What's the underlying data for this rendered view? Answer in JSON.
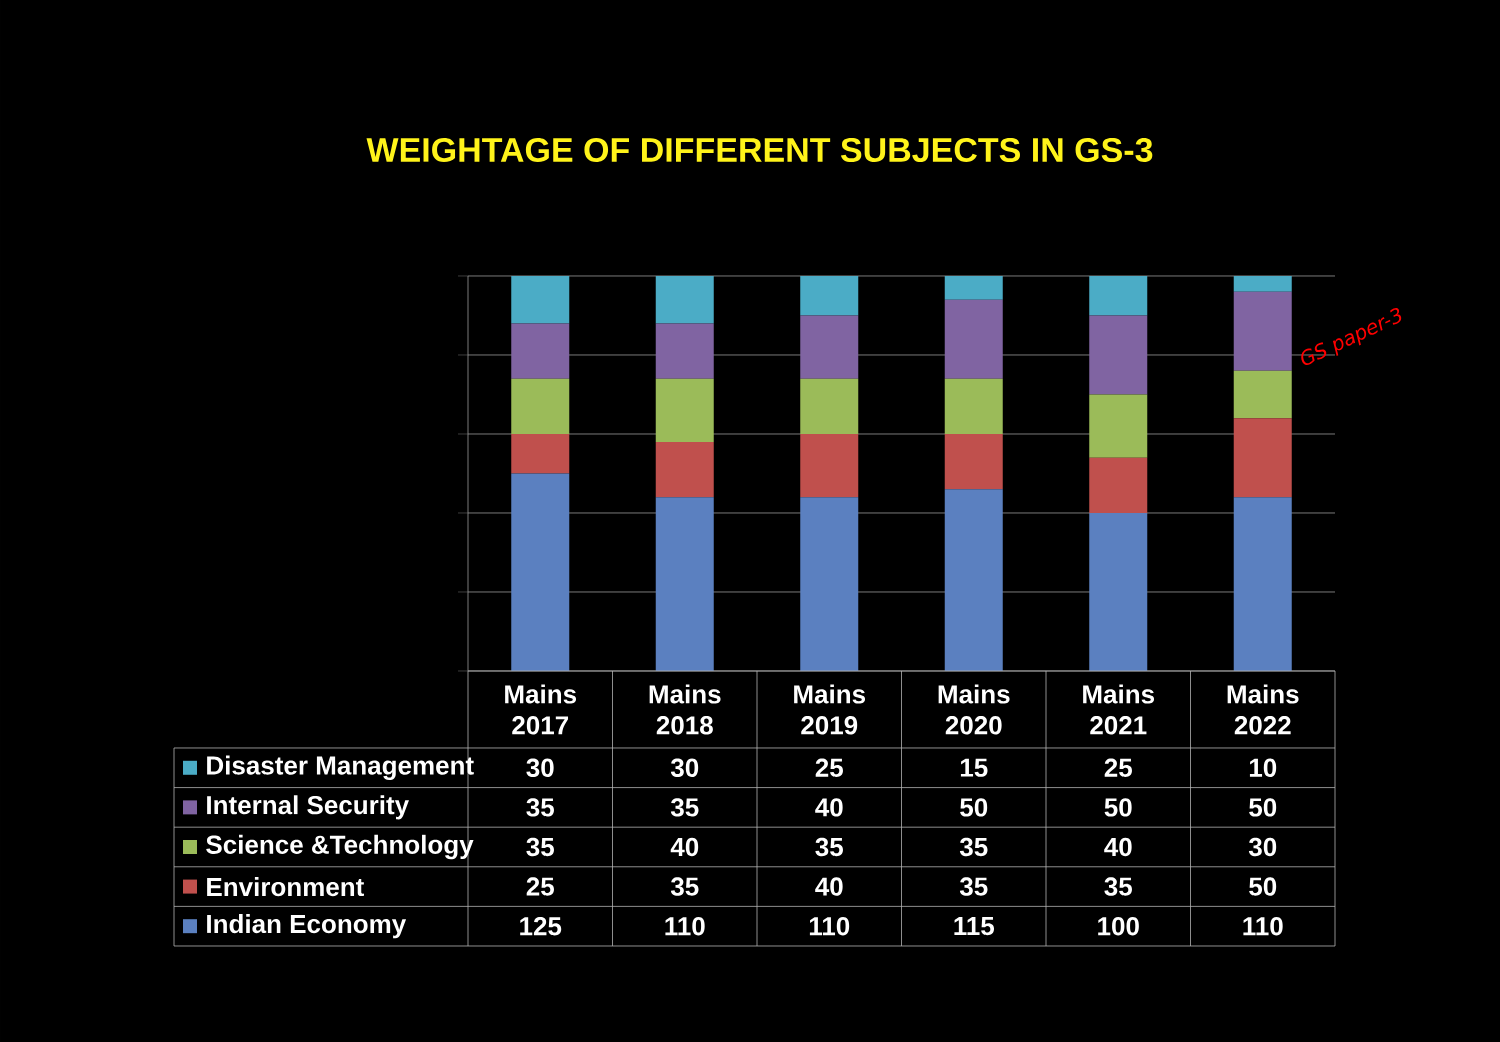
{
  "chart_data": {
    "type": "bar",
    "title": "WEIGHTAGE OF DIFFERENT SUBJECTS IN GS-3",
    "categories": [
      "Mains 2017",
      "Mains 2018",
      "Mains 2019",
      "Mains 2020",
      "Mains 2021",
      "Mains 2022"
    ],
    "series": [
      {
        "name": "Indian Economy",
        "color": "#5b80c0",
        "values": [
          125,
          110,
          110,
          115,
          100,
          110
        ]
      },
      {
        "name": "Environment",
        "color": "#c0504d",
        "values": [
          25,
          35,
          40,
          35,
          35,
          50
        ]
      },
      {
        "name": "Science &Technology",
        "color": "#9bbb59",
        "values": [
          35,
          40,
          35,
          35,
          40,
          30
        ]
      },
      {
        "name": "Internal Security",
        "color": "#8064a2",
        "values": [
          35,
          35,
          40,
          50,
          50,
          50
        ]
      },
      {
        "name": "Disaster Management",
        "color": "#4bacc6",
        "values": [
          30,
          30,
          25,
          15,
          25,
          10
        ]
      }
    ],
    "stacked": true,
    "data_labels": true,
    "grid": "y",
    "legend": "bottom left",
    "tick_labels": "x",
    "ylim": [
      0,
      250
    ],
    "yticks": [
      {
        "value": 0,
        "label": null
      },
      {
        "value": 50,
        "label": null
      },
      {
        "value": 100,
        "label": null
      },
      {
        "value": 150,
        "label": null
      },
      {
        "value": 200,
        "label": null
      },
      {
        "value": 250,
        "label": null
      }
    ],
    "annotations": [
      "GS paper-3"
    ]
  }
}
